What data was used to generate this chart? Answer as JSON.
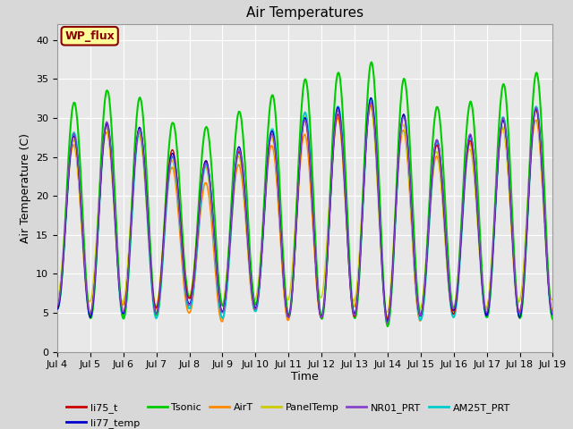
{
  "title": "Air Temperatures",
  "xlabel": "Time",
  "ylabel": "Air Temperature (C)",
  "ylim": [
    0,
    42
  ],
  "yticks": [
    0,
    5,
    10,
    15,
    20,
    25,
    30,
    35,
    40
  ],
  "fig_bg_color": "#d8d8d8",
  "plot_bg_color": "#e8e8e8",
  "annotation_text": "WP_flux",
  "annotation_bg": "#ffff99",
  "annotation_border": "#8b0000",
  "annotation_text_color": "#8b0000",
  "series": [
    {
      "name": "li75_t",
      "color": "#cc0000",
      "lw": 1.0,
      "zorder": 4
    },
    {
      "name": "li77_temp",
      "color": "#0000cc",
      "lw": 1.0,
      "zorder": 4
    },
    {
      "name": "Tsonic",
      "color": "#00cc00",
      "lw": 1.5,
      "zorder": 3
    },
    {
      "name": "AirT",
      "color": "#ff8800",
      "lw": 1.2,
      "zorder": 2
    },
    {
      "name": "PanelTemp",
      "color": "#cccc00",
      "lw": 1.0,
      "zorder": 2
    },
    {
      "name": "NR01_PRT",
      "color": "#8844cc",
      "lw": 1.0,
      "zorder": 4
    },
    {
      "name": "AM25T_PRT",
      "color": "#00cccc",
      "lw": 1.5,
      "zorder": 2
    }
  ],
  "n_points": 2160,
  "grid_color": "#ffffff",
  "legend_fontsize": 8,
  "title_fontsize": 11,
  "axis_fontsize": 9,
  "tick_fontsize": 8
}
